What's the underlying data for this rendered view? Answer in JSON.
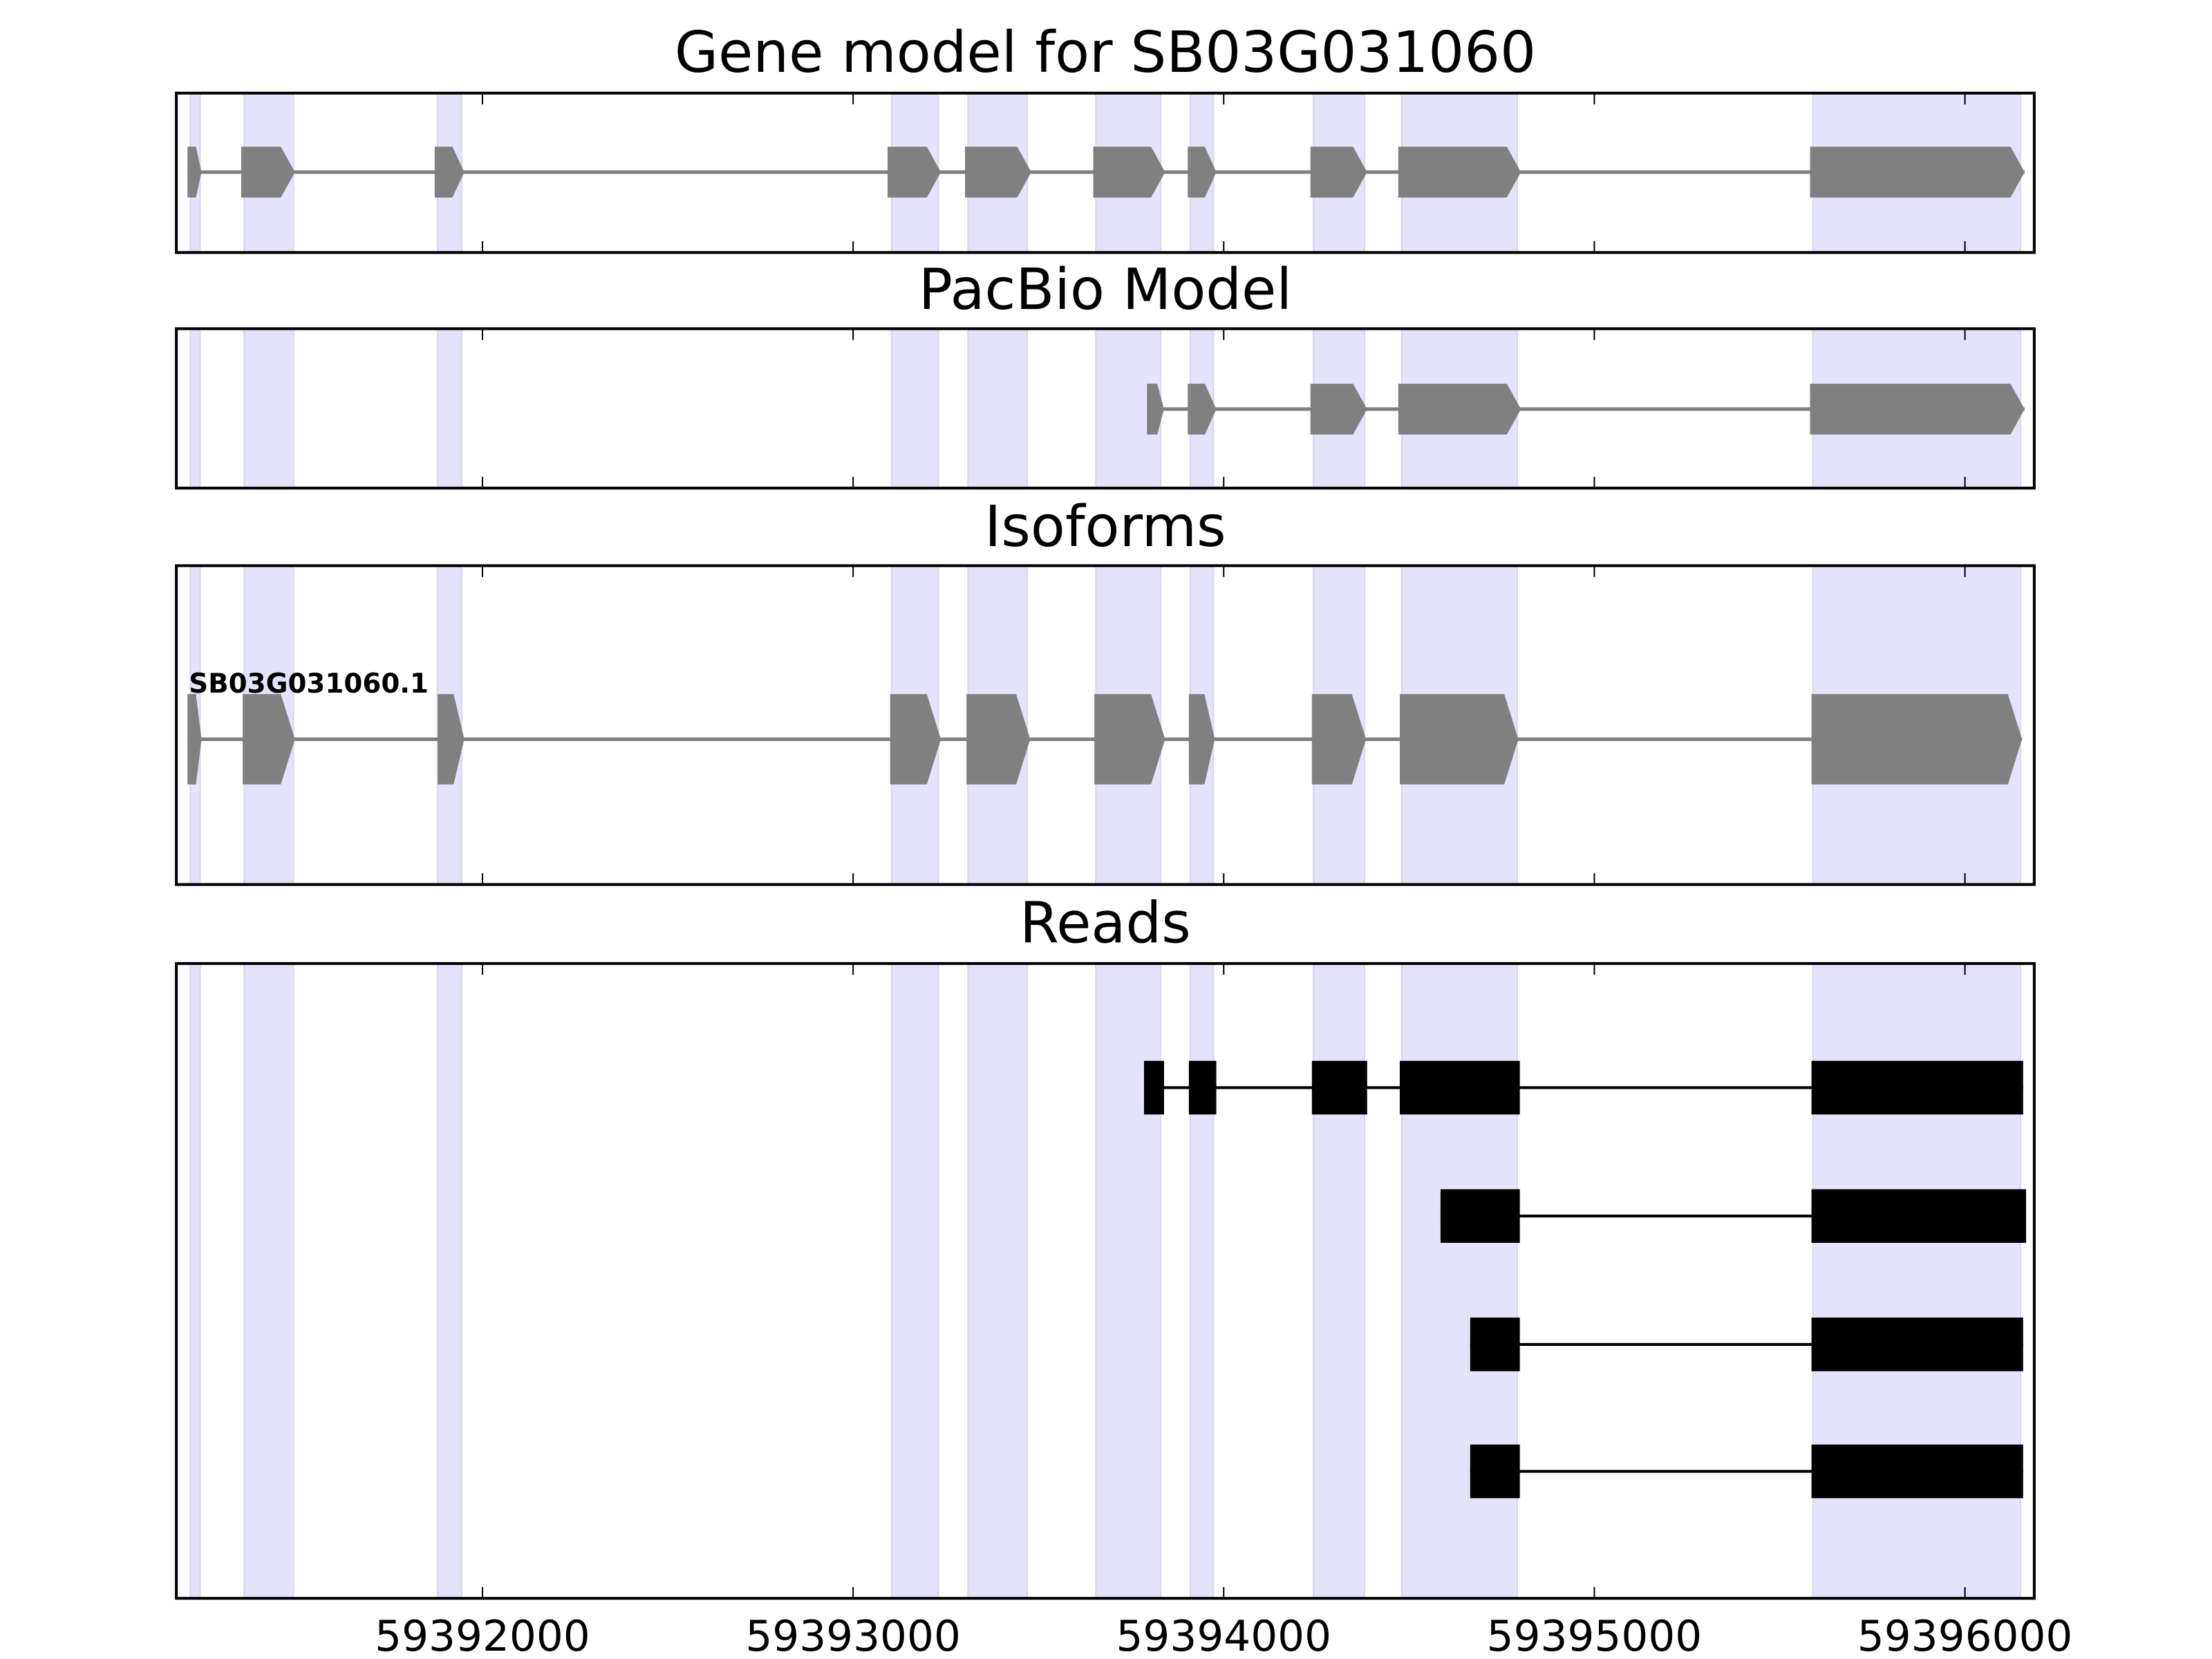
{
  "chart_data": {
    "type": "gene-track",
    "xlim": [
      59391174,
      59396187
    ],
    "xticks": [
      59392000,
      59393000,
      59394000,
      59395000,
      59396000
    ],
    "xtick_labels": [
      "59392000",
      "59393000",
      "59394000",
      "59395000",
      "59396000"
    ],
    "shade_color": "#e3e3fb",
    "exon_color_model": "#808080",
    "exon_color_read": "#000000",
    "shaded_regions": [
      [
        59391212,
        59391238
      ],
      [
        59391357,
        59391490
      ],
      [
        59391879,
        59391944
      ],
      [
        59393104,
        59393230
      ],
      [
        59393310,
        59393470
      ],
      [
        59393655,
        59393830
      ],
      [
        59393910,
        59393972
      ],
      [
        59394242,
        59394380
      ],
      [
        59394480,
        59394792
      ],
      [
        59395590,
        59396150
      ]
    ],
    "panels": [
      {
        "title": "Gene model for SB03G031060",
        "tracks": [
          {
            "label": "",
            "style": "arrow",
            "exons": [
              [
                59391204,
                59391242
              ],
              [
                59391349,
                59391494
              ],
              [
                59391871,
                59391951
              ],
              [
                59393093,
                59393237
              ],
              [
                59393302,
                59393481
              ],
              [
                59393648,
                59393842
              ],
              [
                59393903,
                59393980
              ],
              [
                59394234,
                59394387
              ],
              [
                59394471,
                59394802
              ],
              [
                59395582,
                59396161
              ]
            ]
          }
        ]
      },
      {
        "title": "PacBio Model",
        "tracks": [
          {
            "label": "",
            "style": "arrow",
            "exons": [
              [
                59393793,
                59393839
              ],
              [
                59393903,
                59393980
              ],
              [
                59394234,
                59394387
              ],
              [
                59394471,
                59394802
              ],
              [
                59395582,
                59396161
              ]
            ]
          }
        ]
      },
      {
        "title": "Isoforms",
        "tracks": [
          {
            "label": "SB03G031060.1",
            "style": "arrow",
            "exons": [
              [
                59391204,
                59391242
              ],
              [
                59391353,
                59391494
              ],
              [
                59391879,
                59391951
              ],
              [
                59393100,
                59393237
              ],
              [
                59393306,
                59393478
              ],
              [
                59393651,
                59393842
              ],
              [
                59393906,
                59393976
              ],
              [
                59394238,
                59394384
              ],
              [
                59394475,
                59394795
              ],
              [
                59395586,
                59396154
              ]
            ]
          }
        ]
      },
      {
        "title": "Reads",
        "tracks": [
          {
            "label": "",
            "style": "block",
            "exons": [
              [
                59393785,
                59393839
              ],
              [
                59393906,
                59393980
              ],
              [
                59394238,
                59394387
              ],
              [
                59394475,
                59394799
              ],
              [
                59395586,
                59396157
              ]
            ]
          },
          {
            "label": "",
            "style": "block",
            "exons": [
              [
                59394585,
                59394799
              ],
              [
                59395586,
                59396165
              ]
            ]
          },
          {
            "label": "",
            "style": "block",
            "exons": [
              [
                59394665,
                59394799
              ],
              [
                59395586,
                59396157
              ]
            ]
          },
          {
            "label": "",
            "style": "block",
            "exons": [
              [
                59394665,
                59394799
              ],
              [
                59395586,
                59396157
              ]
            ]
          }
        ]
      }
    ]
  }
}
